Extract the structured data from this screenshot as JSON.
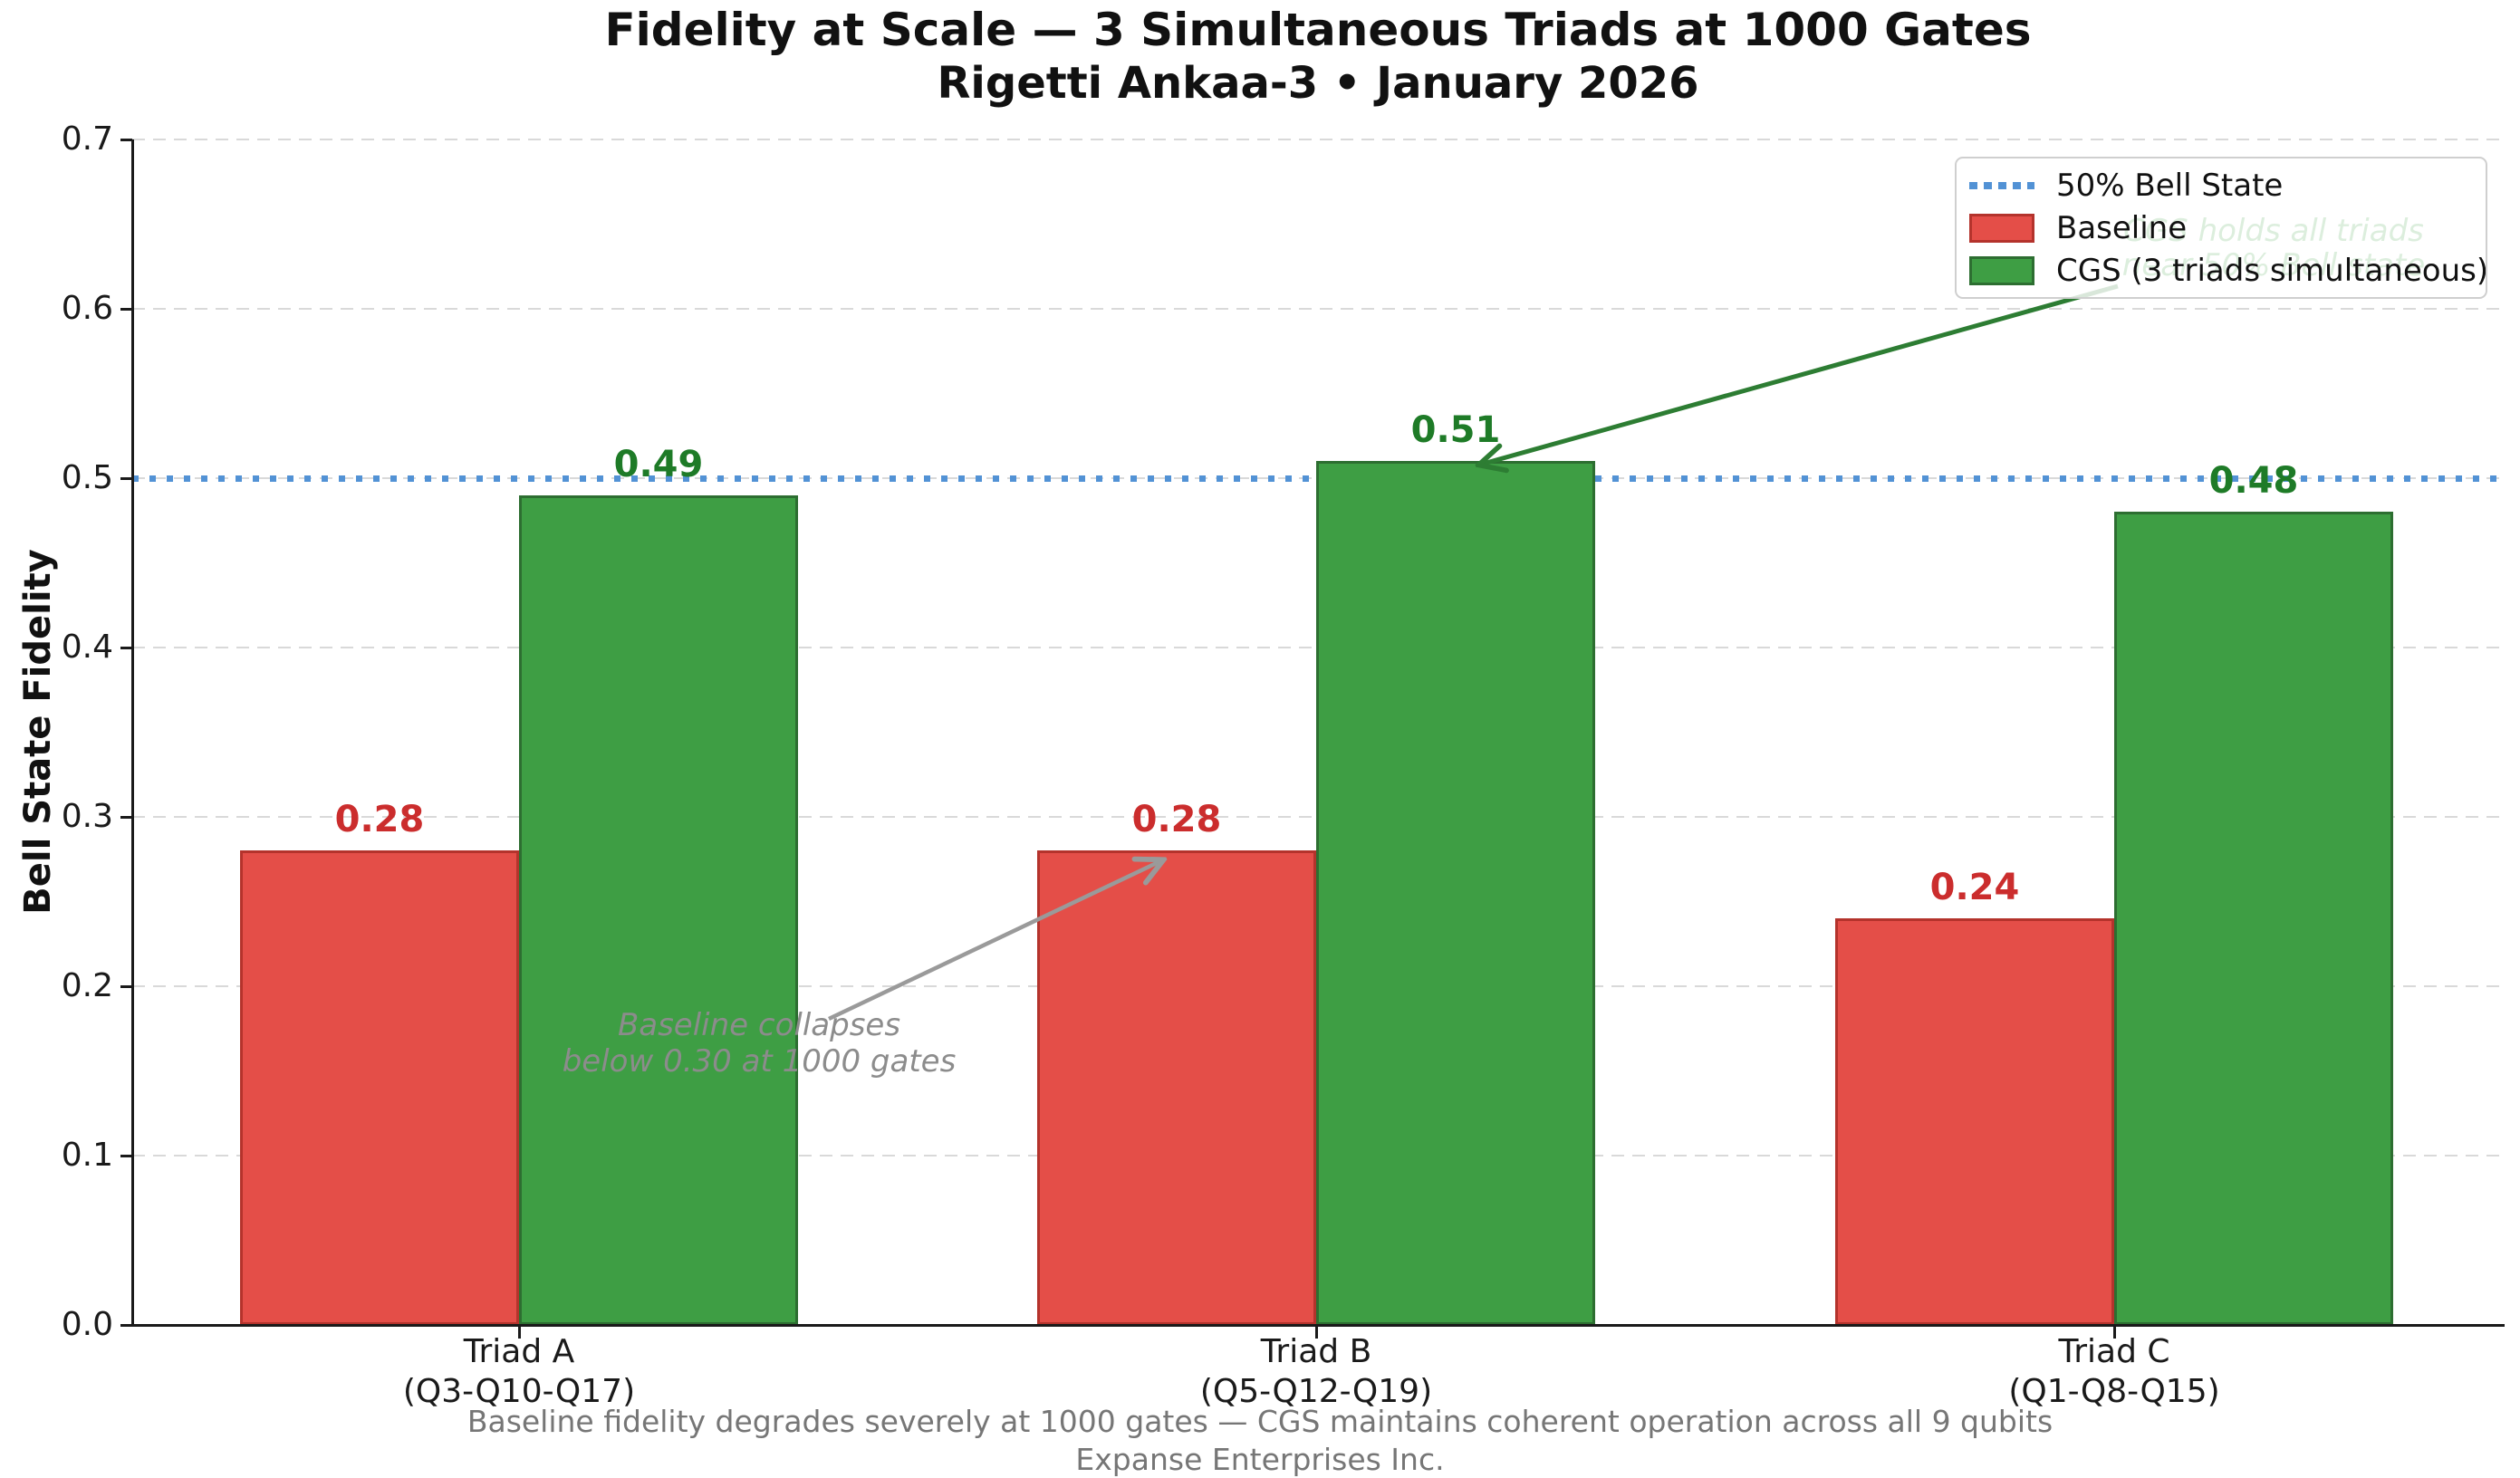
{
  "chart_data": {
    "type": "bar",
    "title": "Fidelity at Scale — 3 Simultaneous Triads at 1000 Gates",
    "subtitle": "Rigetti Ankaa-3 • January 2026",
    "ylabel": "Bell State Fidelity",
    "ylim": [
      0.0,
      0.7
    ],
    "yticks": [
      0.0,
      0.1,
      0.2,
      0.3,
      0.4,
      0.5,
      0.6,
      0.7
    ],
    "grid": true,
    "legend_position": "upper right",
    "categories": [
      {
        "label": "Triad A",
        "sublabel": "(Q3-Q10-Q17)"
      },
      {
        "label": "Triad B",
        "sublabel": "(Q5-Q12-Q19)"
      },
      {
        "label": "Triad C",
        "sublabel": "(Q1-Q8-Q15)"
      }
    ],
    "series": [
      {
        "name": "Baseline",
        "values": [
          0.28,
          0.28,
          0.24
        ],
        "fill": "#e44e48",
        "edge": "#b4332c",
        "label_color": "#cb2d2d"
      },
      {
        "name": "CGS (3 triads simultaneous)",
        "values": [
          0.49,
          0.51,
          0.48
        ],
        "fill": "#3e9e44",
        "edge": "#2d6e31",
        "label_color": "#1e7b27"
      }
    ],
    "reference_line": {
      "label": "50% Bell State",
      "value": 0.5,
      "color": "#5292d5"
    },
    "annotations": [
      {
        "id": "baseline-collapse",
        "lines": [
          "Baseline collapses",
          "below 0.30 at 1000 gates"
        ],
        "color": "#8c8c8c"
      },
      {
        "id": "cgs-holds",
        "lines": [
          "CGS holds all triads",
          "near 50% Bell state"
        ],
        "color": "#3f9e45"
      }
    ],
    "footnotes": [
      "Baseline fidelity degrades severely at 1000 gates — CGS maintains coherent operation across all 9 qubits",
      "Expanse Enterprises Inc."
    ]
  }
}
